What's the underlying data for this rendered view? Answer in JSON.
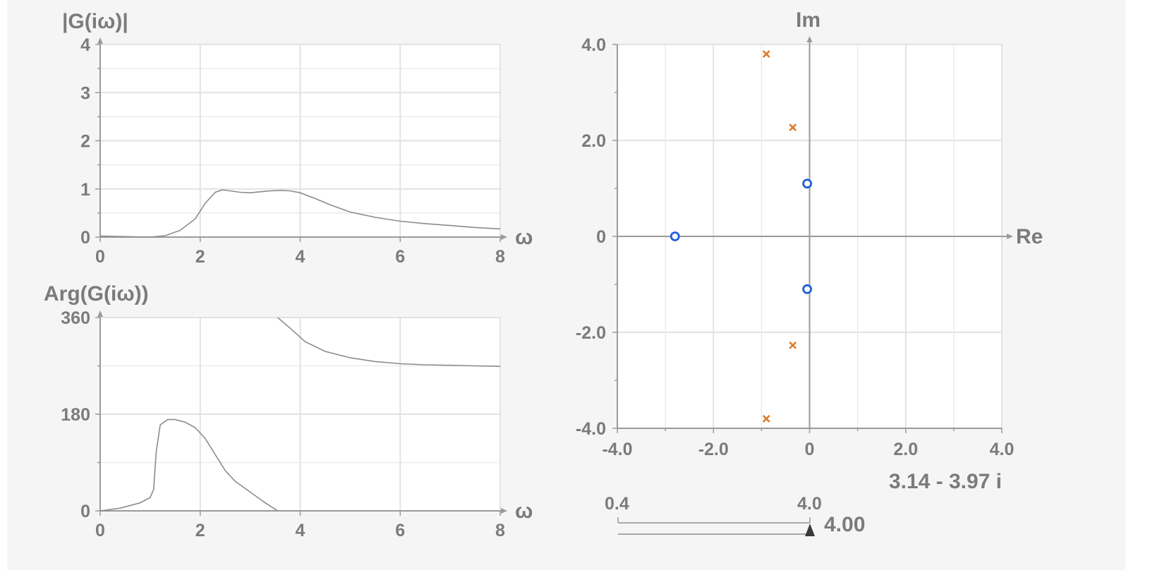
{
  "colors": {
    "pole": "#e07b2a",
    "zero": "#1f5ddb",
    "axis": "#9a9a9a",
    "text": "#7b7b7b"
  },
  "chart_data": [
    {
      "type": "line",
      "title": "|G(iω)|",
      "xlabel": "ω",
      "xlim": [
        0,
        8
      ],
      "ylim": [
        0,
        4
      ],
      "xticks": [
        "0",
        "2",
        "4",
        "6",
        "8"
      ],
      "yticks": [
        "0",
        "1",
        "2",
        "3",
        "4"
      ],
      "grid": true,
      "series": [
        {
          "x": [
            0,
            0.5,
            1.0,
            1.3,
            1.6,
            1.9,
            2.1,
            2.3,
            2.45,
            2.6,
            2.8,
            3.0,
            3.2,
            3.4,
            3.6,
            3.8,
            4.0,
            4.3,
            4.6,
            5.0,
            5.5,
            6.0,
            6.5,
            7.0,
            7.5,
            8.0
          ],
          "y": [
            0.02,
            0.01,
            0.0,
            0.03,
            0.14,
            0.38,
            0.7,
            0.93,
            0.98,
            0.96,
            0.93,
            0.92,
            0.94,
            0.96,
            0.97,
            0.96,
            0.92,
            0.8,
            0.67,
            0.52,
            0.41,
            0.33,
            0.28,
            0.24,
            0.2,
            0.17
          ]
        }
      ]
    },
    {
      "type": "line",
      "title": "Arg(G(iω))",
      "xlabel": "ω",
      "xlim": [
        0,
        8
      ],
      "ylim": [
        0,
        360
      ],
      "xticks": [
        "0",
        "2",
        "4",
        "6",
        "8"
      ],
      "yticks": [
        "0",
        "180",
        "360"
      ],
      "grid": true,
      "series": [
        {
          "x": [
            0,
            0.4,
            0.8,
            1.0,
            1.07,
            1.12,
            1.2,
            1.35,
            1.5,
            1.7,
            1.9,
            2.1,
            2.3,
            2.5,
            2.7,
            3.0,
            3.3,
            3.55
          ],
          "y": [
            0,
            5,
            15,
            25,
            40,
            110,
            160,
            170,
            170,
            165,
            155,
            135,
            105,
            75,
            55,
            35,
            15,
            0
          ]
        },
        {
          "x": [
            3.55,
            3.8,
            4.1,
            4.5,
            5.0,
            5.5,
            6.0,
            6.5,
            7.0,
            7.5,
            8.0
          ],
          "y": [
            360,
            340,
            315,
            297,
            285,
            278,
            274,
            272,
            271,
            270,
            269
          ]
        }
      ]
    },
    {
      "type": "scatter",
      "xlabel": "Re",
      "ylabel": "Im",
      "xlim": [
        -4,
        4
      ],
      "ylim": [
        -4,
        4
      ],
      "xticks": [
        "-4.0",
        "-2.0",
        "0",
        "2.0",
        "4.0"
      ],
      "yticks": [
        "-4.0",
        "-2.0",
        "0",
        "2.0",
        "4.0"
      ],
      "grid": true,
      "poles": [
        {
          "re": -0.9,
          "im": 3.8
        },
        {
          "re": -0.35,
          "im": 2.27
        },
        {
          "re": -0.35,
          "im": -2.27
        },
        {
          "re": -0.9,
          "im": -3.8
        }
      ],
      "zeros": [
        {
          "re": -2.8,
          "im": 0
        },
        {
          "re": -0.05,
          "im": 1.1
        },
        {
          "re": -0.05,
          "im": -1.1
        }
      ],
      "readout": "3.14 - 3.97 i"
    }
  ],
  "slider": {
    "min_label": "0.4",
    "max_label": "4.0",
    "min": 0.4,
    "max": 4.0,
    "value": 4.0,
    "value_label": "4.00"
  }
}
